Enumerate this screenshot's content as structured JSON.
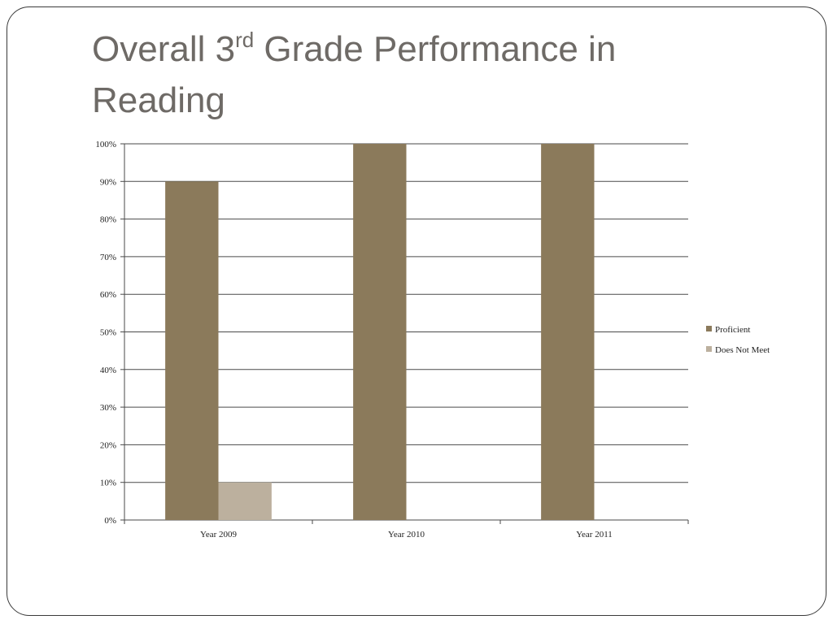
{
  "slide": {
    "title_before": "Overall 3",
    "title_sup": "rd",
    "title_after": " Grade Performance in Reading"
  },
  "chart_data": {
    "type": "bar",
    "categories": [
      "Year 2009",
      "Year 2010",
      "Year 2011"
    ],
    "series": [
      {
        "name": "Proficient",
        "values": [
          90,
          100,
          100
        ],
        "color": "#8b7a5b"
      },
      {
        "name": "Does Not Meet",
        "values": [
          10,
          0,
          0
        ],
        "color": "#bcb09e"
      }
    ],
    "ylim": [
      0,
      100
    ],
    "yticks": [
      "0%",
      "10%",
      "20%",
      "30%",
      "40%",
      "50%",
      "60%",
      "70%",
      "80%",
      "90%",
      "100%"
    ],
    "grid": true,
    "legend": "right",
    "title": "",
    "xlabel": "",
    "ylabel": ""
  }
}
